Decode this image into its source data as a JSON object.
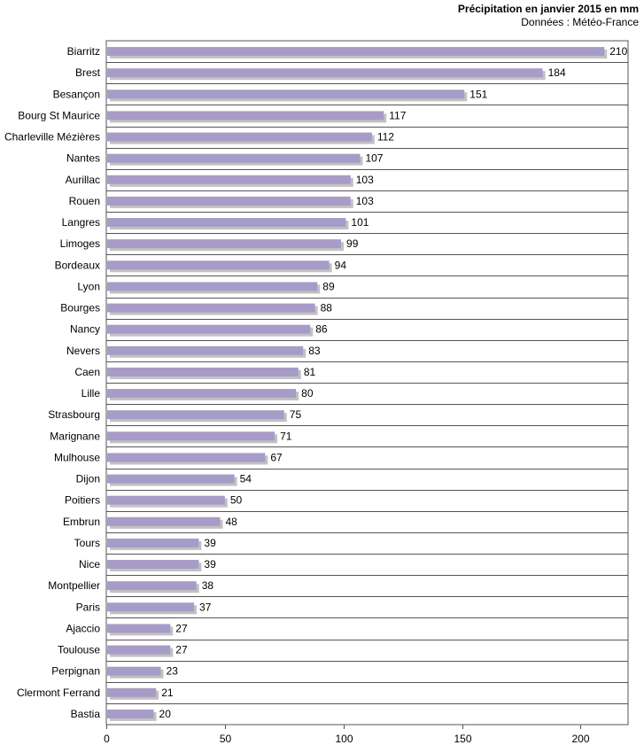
{
  "chart_data": {
    "type": "bar",
    "orientation": "horizontal",
    "title": "Précipitation en janvier 2015 en mm",
    "subtitle": "Données : Météo-France",
    "xlabel": "",
    "ylabel": "",
    "xlim": [
      0,
      220
    ],
    "xticks": [
      0,
      50,
      100,
      150,
      200
    ],
    "grid": "horizontal lines between categories",
    "bar_color": "#a79cc7",
    "bar_shadow_color": "#8f8f8f",
    "categories": [
      "Biarritz",
      "Brest",
      "Besançon",
      "Bourg St Maurice",
      "Charleville Mézières",
      "Nantes",
      "Aurillac",
      "Rouen",
      "Langres",
      "Limoges",
      "Bordeaux",
      "Lyon",
      "Bourges",
      "Nancy",
      "Nevers",
      "Caen",
      "Lille",
      "Strasbourg",
      "Marignane",
      "Mulhouse",
      "Dijon",
      "Poitiers",
      "Embrun",
      "Tours",
      "Nice",
      "Montpellier",
      "Paris",
      "Ajaccio",
      "Toulouse",
      "Perpignan",
      "Clermont Ferrand",
      "Bastia"
    ],
    "values": [
      210,
      184,
      151,
      117,
      112,
      107,
      103,
      103,
      101,
      99,
      94,
      89,
      88,
      86,
      83,
      81,
      80,
      75,
      71,
      67,
      54,
      50,
      48,
      39,
      39,
      38,
      37,
      27,
      27,
      23,
      21,
      20
    ]
  }
}
